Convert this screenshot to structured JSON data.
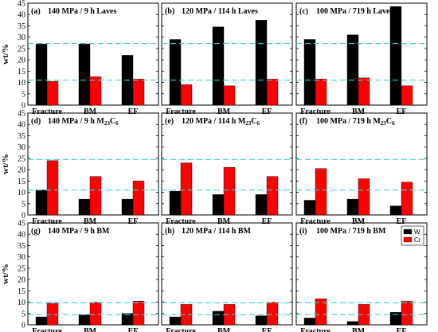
{
  "chart_data": {
    "type": "bar",
    "ylabel": "wt/%",
    "ylim": [
      0,
      45
    ],
    "yticks": [
      0,
      5,
      10,
      15,
      20,
      25,
      30,
      35,
      40,
      45
    ],
    "categories": [
      "Fracture",
      "BM",
      "EF"
    ],
    "legend": {
      "placement": "top-right of panel (i)",
      "entries": [
        {
          "label": "W",
          "color": "#000000"
        },
        {
          "label": "Cr",
          "color": "#ff0000"
        }
      ]
    },
    "panels": [
      {
        "letter": "(a)",
        "title": "140 MPa / 9 h Laves",
        "series": [
          {
            "name": "W",
            "values": [
              27,
              27,
              22
            ]
          },
          {
            "name": "Cr",
            "values": [
              10.5,
              12.5,
              11.5
            ]
          }
        ],
        "reference_lines": [
          27.2,
          11
        ]
      },
      {
        "letter": "(b)",
        "title": "120 MPa / 114 h Laves",
        "series": [
          {
            "name": "W",
            "values": [
              29,
              34.5,
              37.5
            ]
          },
          {
            "name": "Cr",
            "values": [
              9,
              8.5,
              11.5
            ]
          }
        ],
        "reference_lines": [
          27.2,
          11
        ]
      },
      {
        "letter": "(c)",
        "title": "100 MPa / 719 h Laves",
        "series": [
          {
            "name": "W",
            "values": [
              29,
              31,
              43.5
            ]
          },
          {
            "name": "Cr",
            "values": [
              11.5,
              12,
              8.5
            ]
          }
        ],
        "reference_lines": [
          27.2,
          11
        ]
      },
      {
        "letter": "(d)",
        "title_main": "140 MPa / 9 h M",
        "title_sub": "23",
        "title_mid": "C",
        "title_sub2": "6",
        "series": [
          {
            "name": "W",
            "values": [
              11,
              7,
              7
            ]
          },
          {
            "name": "Cr",
            "values": [
              24,
              17,
              15
            ]
          }
        ],
        "reference_lines": [
          24.5,
          11
        ]
      },
      {
        "letter": "(e)",
        "title_main": "120 MPa / 114 h M",
        "title_sub": "23",
        "title_mid": "C",
        "title_sub2": "6",
        "series": [
          {
            "name": "W",
            "values": [
              10.5,
              9,
              9
            ]
          },
          {
            "name": "Cr",
            "values": [
              23,
              21,
              17
            ]
          }
        ],
        "reference_lines": [
          24.5,
          11
        ]
      },
      {
        "letter": "(f)",
        "title_main": "100 MPa / 719 h M",
        "title_sub": "23",
        "title_mid": "C",
        "title_sub2": "6",
        "series": [
          {
            "name": "W",
            "values": [
              6.5,
              7,
              4
            ]
          },
          {
            "name": "Cr",
            "values": [
              20.5,
              16,
              14.5
            ]
          }
        ],
        "reference_lines": [
          24.5,
          11
        ]
      },
      {
        "letter": "(g)",
        "title": "140 MPa / 9 h BM",
        "series": [
          {
            "name": "W",
            "values": [
              3.5,
              4.5,
              5
            ]
          },
          {
            "name": "Cr",
            "values": [
              9.5,
              10,
              10.5
            ]
          }
        ],
        "reference_lines": [
          9.8,
          4.5
        ]
      },
      {
        "letter": "(h)",
        "title": "120 MPa / 114 h BM",
        "series": [
          {
            "name": "W",
            "values": [
              3.5,
              6,
              4
            ]
          },
          {
            "name": "Cr",
            "values": [
              9,
              9,
              10
            ]
          }
        ],
        "reference_lines": [
          9.8,
          4.5
        ]
      },
      {
        "letter": "(i)",
        "title": "100 MPa / 719 h BM",
        "series": [
          {
            "name": "W",
            "values": [
              3,
              1.5,
              5.5
            ]
          },
          {
            "name": "Cr",
            "values": [
              11.5,
              9,
              10.5
            ]
          }
        ],
        "reference_lines": [
          9.8,
          4.5
        ]
      }
    ],
    "colors": {
      "W": "#000000",
      "Cr": "#ff0000",
      "reference_line": "#3fd0c8"
    },
    "grid": false
  }
}
